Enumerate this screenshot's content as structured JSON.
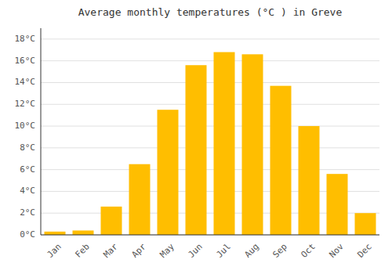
{
  "chart_data": {
    "type": "bar",
    "title": "Average monthly temperatures (°C ) in Greve",
    "categories": [
      "Jan",
      "Feb",
      "Mar",
      "Apr",
      "May",
      "Jun",
      "Jul",
      "Aug",
      "Sep",
      "Oct",
      "Nov",
      "Dec"
    ],
    "values": [
      0.3,
      0.4,
      2.6,
      6.5,
      11.5,
      15.6,
      16.8,
      16.6,
      13.7,
      10.0,
      5.6,
      2.0
    ],
    "color": "#FFBE00",
    "ylim": [
      0,
      19
    ],
    "yticks": [
      {
        "value": 0,
        "label": "0°C"
      },
      {
        "value": 2,
        "label": "2°C"
      },
      {
        "value": 4,
        "label": "4°C"
      },
      {
        "value": 6,
        "label": "6°C"
      },
      {
        "value": 8,
        "label": "8°C"
      },
      {
        "value": 10,
        "label": "10°C"
      },
      {
        "value": 12,
        "label": "12°C"
      },
      {
        "value": 14,
        "label": "14°C"
      },
      {
        "value": 16,
        "label": "16°C"
      },
      {
        "value": 18,
        "label": "18°C"
      }
    ],
    "grid": true
  }
}
